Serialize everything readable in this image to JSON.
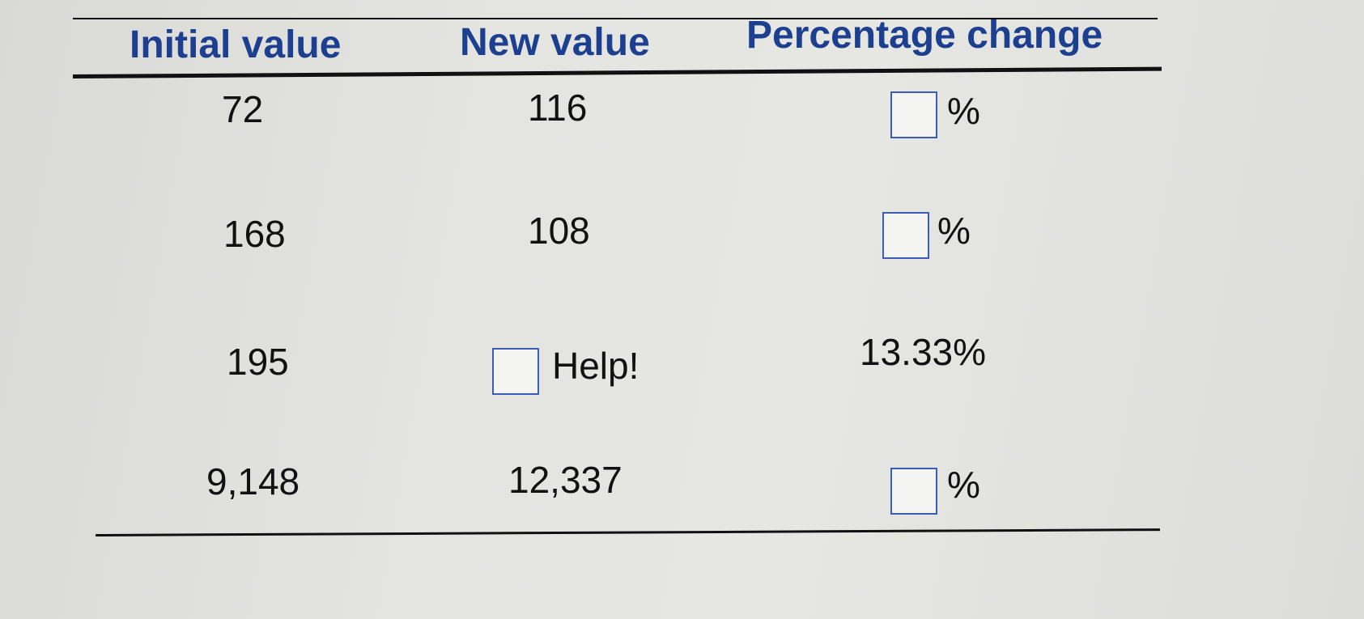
{
  "table": {
    "headers": [
      "Initial value",
      "New value",
      "Percentage change"
    ],
    "rows": [
      {
        "initial": "72",
        "new": "116",
        "pct_unit": "%"
      },
      {
        "initial": "168",
        "new": "108",
        "pct_unit": "%"
      },
      {
        "initial": "195",
        "new_help": "Help!",
        "pct_value": "13.33%"
      },
      {
        "initial": "9,148",
        "new": "12,337",
        "pct_unit": "%"
      }
    ]
  }
}
